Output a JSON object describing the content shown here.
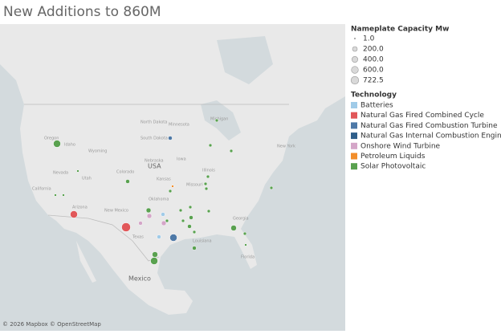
{
  "title": "New Additions to 860M",
  "size_legend": {
    "title": "Nameplate Capacity Mw",
    "items": [
      "1.0",
      "200.0",
      "400.0",
      "600.0",
      "722.5"
    ]
  },
  "color_legend": {
    "title": "Technology",
    "items": [
      {
        "label": "Batteries",
        "color": "#a0cbe8"
      },
      {
        "label": "Natural Gas Fired Combined Cycle",
        "color": "#e15759"
      },
      {
        "label": "Natural Gas Fired Combustion Turbine",
        "color": "#4e79a7"
      },
      {
        "label": "Natural Gas Internal Combustion Engine",
        "color": "#2f5f8a"
      },
      {
        "label": "Onshore Wind Turbine",
        "color": "#d4a6c8"
      },
      {
        "label": "Petroleum Liquids",
        "color": "#f28e2b"
      },
      {
        "label": "Solar Photovoltaic",
        "color": "#59a14f"
      }
    ]
  },
  "map_labels": {
    "country_usa": "USA",
    "country_mexico": "Mexico",
    "states": [
      "Oregon",
      "Idaho",
      "Wyoming",
      "Nevada",
      "California",
      "Utah",
      "Colorado",
      "Arizona",
      "New Mexico",
      "Kansas",
      "Nebraska",
      "South Dakota",
      "North Dakota",
      "Minnesota",
      "Iowa",
      "Illinois",
      "Missouri",
      "Oklahoma",
      "Texas",
      "Louisiana",
      "Georgia",
      "Florida",
      "Michigan",
      "New York"
    ]
  },
  "attribution": "© 2026 Mapbox © OpenStreetMap"
}
